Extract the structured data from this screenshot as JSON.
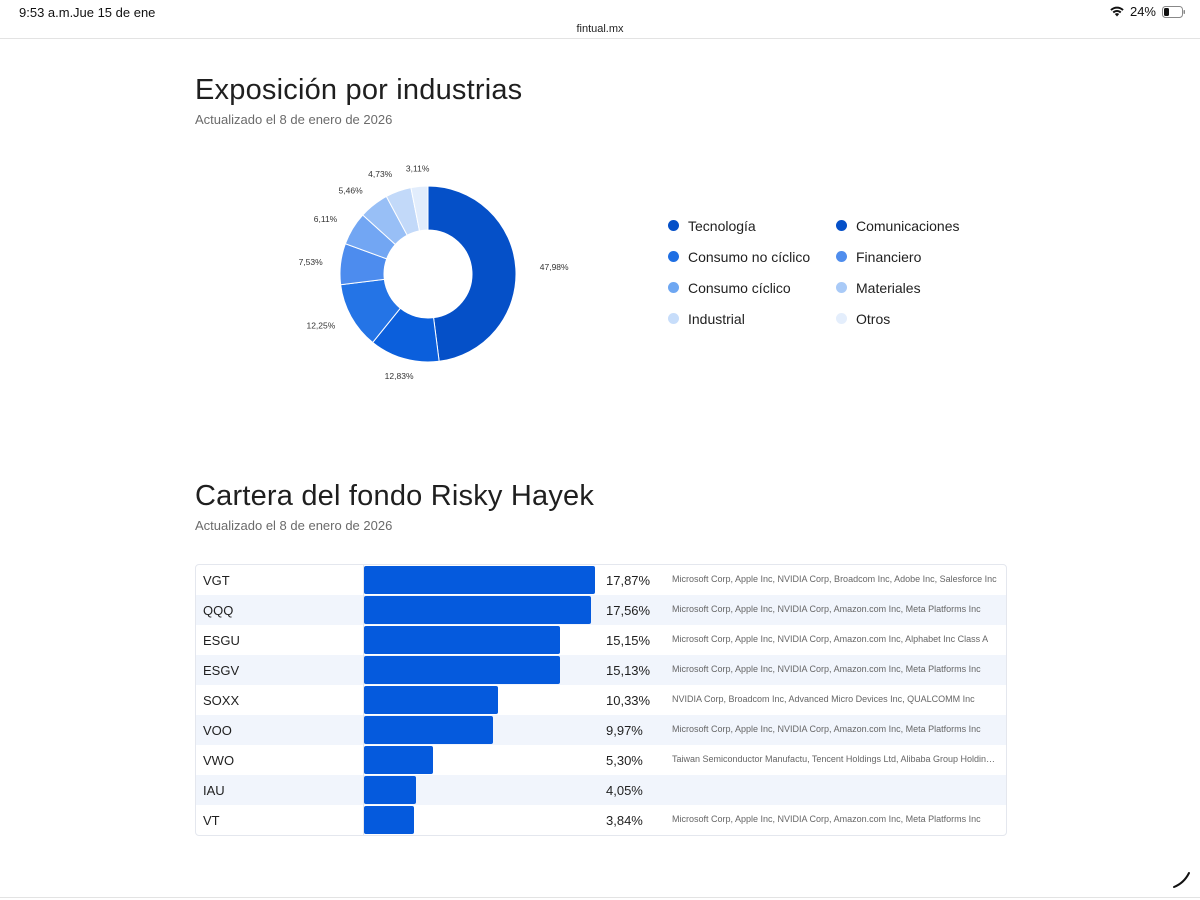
{
  "status_bar": {
    "time": "9:53 a.m.",
    "date": "Jue 15 de ene",
    "battery": "24%"
  },
  "browser": {
    "url": "fintual.mx"
  },
  "industries": {
    "title": "Exposición por industrias",
    "updated": "Actualizado el 8 de enero de 2026",
    "legend": [
      {
        "label": "Tecnología",
        "color": "#0550c8"
      },
      {
        "label": "Comunicaciones",
        "color": "#0550c8"
      },
      {
        "label": "Consumo no cíclico",
        "color": "#1f6fe3"
      },
      {
        "label": "Financiero",
        "color": "#4f8ded"
      },
      {
        "label": "Consumo cíclico",
        "color": "#6ea7f2"
      },
      {
        "label": "Materiales",
        "color": "#a9caf7"
      },
      {
        "label": "Industrial",
        "color": "#c7ddfa"
      },
      {
        "label": "Otros",
        "color": "#e4eefc"
      }
    ]
  },
  "chart_data": {
    "type": "pie",
    "donut": true,
    "values": [
      47.98,
      12.83,
      12.25,
      7.53,
      6.11,
      5.46,
      4.73,
      3.11
    ],
    "labels": [
      "47,98%",
      "12,83%",
      "12,25%",
      "7,53%",
      "6,11%",
      "5,46%",
      "4,73%",
      "3,11%"
    ],
    "colors": [
      "#0550c8",
      "#0b5fdc",
      "#2474e6",
      "#4d8cee",
      "#72a6f3",
      "#98bff6",
      "#c2d9f9",
      "#e2edfc"
    ]
  },
  "portfolio": {
    "title": "Cartera del fondo Risky Hayek",
    "updated": "Actualizado el 8 de enero de 2026",
    "max_pct": 17.87,
    "rows": [
      {
        "ticker": "VGT",
        "pct_value": 17.87,
        "pct": "17,87%",
        "holdings": "Microsoft Corp, Apple Inc, NVIDIA Corp, Broadcom Inc, Adobe Inc, Salesforce Inc"
      },
      {
        "ticker": "QQQ",
        "pct_value": 17.56,
        "pct": "17,56%",
        "holdings": "Microsoft Corp, Apple Inc, NVIDIA Corp, Amazon.com Inc, Meta Platforms Inc"
      },
      {
        "ticker": "ESGU",
        "pct_value": 15.15,
        "pct": "15,15%",
        "holdings": "Microsoft Corp, Apple Inc, NVIDIA Corp, Amazon.com Inc, Alphabet Inc Class A"
      },
      {
        "ticker": "ESGV",
        "pct_value": 15.13,
        "pct": "15,13%",
        "holdings": "Microsoft Corp, Apple Inc, NVIDIA Corp, Amazon.com Inc, Meta Platforms Inc"
      },
      {
        "ticker": "SOXX",
        "pct_value": 10.33,
        "pct": "10,33%",
        "holdings": "NVIDIA Corp, Broadcom Inc, Advanced Micro Devices Inc, QUALCOMM Inc"
      },
      {
        "ticker": "VOO",
        "pct_value": 9.97,
        "pct": "9,97%",
        "holdings": "Microsoft Corp, Apple Inc, NVIDIA Corp, Amazon.com Inc, Meta Platforms Inc"
      },
      {
        "ticker": "VWO",
        "pct_value": 5.3,
        "pct": "5,30%",
        "holdings": "Taiwan Semiconductor Manufactu, Tencent Holdings Ltd, Alibaba Group Holding Ltd"
      },
      {
        "ticker": "IAU",
        "pct_value": 4.05,
        "pct": "4,05%",
        "holdings": ""
      },
      {
        "ticker": "VT",
        "pct_value": 3.84,
        "pct": "3,84%",
        "holdings": "Microsoft Corp, Apple Inc, NVIDIA Corp, Amazon.com Inc, Meta Platforms Inc"
      }
    ]
  }
}
